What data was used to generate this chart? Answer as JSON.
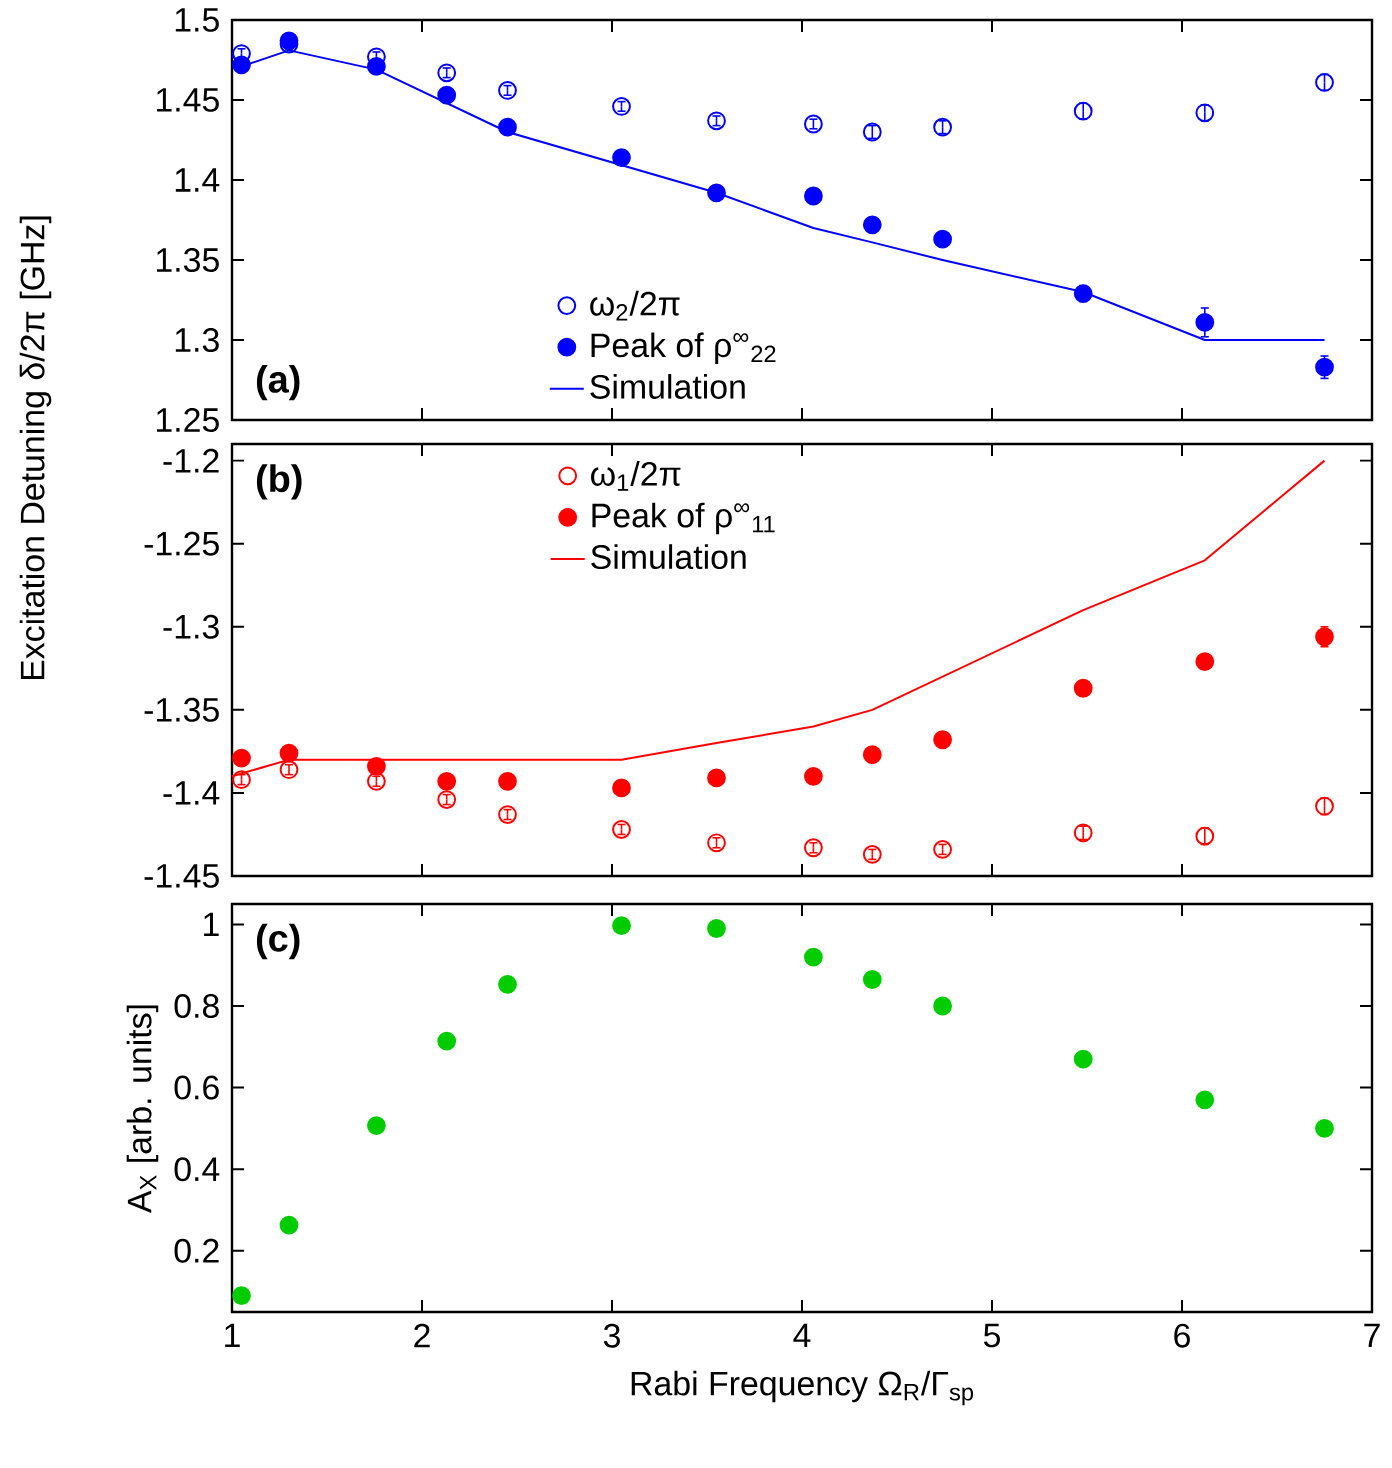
{
  "chart_data": [
    {
      "type": "scatter",
      "ylabel": "Excitation Detuning δ/2π [GHz]",
      "annotations": [
        "(a)"
      ],
      "xlim": [
        1,
        7
      ],
      "xticks": [
        1,
        2,
        3,
        4,
        5,
        6,
        7
      ],
      "ylim": [
        1.25,
        1.5
      ],
      "yticks": [
        1.25,
        1.3,
        1.35,
        1.4,
        1.45,
        1.5
      ],
      "tick_labels": "y",
      "legend": "bottom left",
      "x": [
        1.05,
        1.3,
        1.76,
        2.13,
        2.45,
        3.05,
        3.55,
        4.06,
        4.37,
        4.74,
        5.48,
        6.12,
        6.75
      ],
      "series": [
        {
          "name": "ω$_{2}$/2π",
          "color": "#0000ff",
          "marker": "open circle",
          "values": [
            1.479,
            1.485,
            1.477,
            1.467,
            1.456,
            1.446,
            1.437,
            1.435,
            1.43,
            1.433,
            1.443,
            1.442,
            1.461
          ],
          "errors": [
            0.003,
            0.003,
            0.003,
            0.003,
            0.003,
            0.003,
            0.003,
            0.003,
            0.004,
            0.004,
            0.005,
            0.005,
            0.005
          ]
        },
        {
          "name": "Peak of ρ$^{∞}$$_{22}$",
          "color": "#0000ff",
          "marker": "circle",
          "values": [
            1.472,
            1.487,
            1.471,
            1.453,
            1.433,
            1.414,
            1.392,
            1.39,
            1.372,
            1.363,
            1.329,
            1.311,
            1.283
          ],
          "errors": [
            null,
            null,
            null,
            null,
            null,
            null,
            null,
            null,
            null,
            null,
            0.005,
            0.009,
            0.007
          ]
        },
        {
          "name": "Simulation",
          "type": "line",
          "color": "#0000ff",
          "x": [
            1.0,
            1.05,
            1.3,
            1.76,
            2.45,
            3.55,
            4.06,
            4.37,
            4.74,
            5.48,
            6.12,
            6.75
          ],
          "values": [
            1.478,
            1.471,
            1.481,
            1.469,
            1.43,
            1.392,
            1.37,
            1.361,
            1.35,
            1.33,
            1.3,
            1.3
          ]
        }
      ]
    },
    {
      "type": "scatter",
      "annotations": [
        "(b)"
      ],
      "xlim": [
        1,
        7
      ],
      "xticks": [
        1,
        2,
        3,
        4,
        5,
        6,
        7
      ],
      "ylim": [
        -1.45,
        -1.19
      ],
      "yticks": [
        -1.45,
        -1.4,
        -1.35,
        -1.3,
        -1.25,
        -1.2
      ],
      "tick_labels": "y",
      "legend": "top left",
      "x": [
        1.05,
        1.3,
        1.76,
        2.13,
        2.45,
        3.05,
        3.55,
        4.06,
        4.37,
        4.74,
        5.48,
        6.12,
        6.75
      ],
      "series": [
        {
          "name": "ω$_{1}$/2π",
          "color": "#ff0000",
          "marker": "open circle",
          "values": [
            -1.392,
            -1.386,
            -1.393,
            -1.404,
            -1.413,
            -1.422,
            -1.43,
            -1.433,
            -1.437,
            -1.434,
            -1.424,
            -1.426,
            -1.408
          ],
          "errors": [
            0.003,
            0.003,
            0.003,
            0.003,
            0.003,
            0.003,
            0.003,
            0.003,
            0.003,
            0.003,
            0.004,
            0.005,
            0.005
          ]
        },
        {
          "name": "Peak of ρ$^{∞}$$_{11}$",
          "color": "#ff0000",
          "marker": "circle",
          "values": [
            -1.379,
            -1.376,
            -1.384,
            -1.393,
            -1.393,
            -1.397,
            -1.391,
            -1.39,
            -1.377,
            -1.368,
            -1.337,
            -1.321,
            -1.306
          ],
          "errors": [
            null,
            null,
            null,
            null,
            null,
            null,
            null,
            null,
            null,
            null,
            null,
            0.004,
            0.006
          ]
        },
        {
          "name": "Simulation",
          "type": "line",
          "color": "#ff0000",
          "x": [
            1.0,
            1.3,
            3.05,
            3.55,
            4.06,
            4.37,
            5.48,
            6.12,
            6.75
          ],
          "values": [
            -1.39,
            -1.38,
            -1.38,
            -1.37,
            -1.36,
            -1.35,
            -1.29,
            -1.26,
            -1.2
          ]
        }
      ]
    },
    {
      "type": "scatter",
      "xlabel": "Rabi Frequency Ω$_{R}$/Γ$_{sp}$",
      "ylabel": "A$_{X}$ [arb. units]",
      "annotations": [
        "(c)"
      ],
      "xlim": [
        1,
        7
      ],
      "xticks": [
        1,
        2,
        3,
        4,
        5,
        6,
        7
      ],
      "ylim": [
        0.05,
        1.05
      ],
      "yticks": [
        0.2,
        0.4,
        0.6,
        0.8,
        1
      ],
      "x": [
        1.05,
        1.3,
        1.76,
        2.13,
        2.45,
        3.05,
        3.55,
        4.06,
        4.37,
        4.74,
        5.48,
        6.12,
        6.75
      ],
      "series": [
        {
          "color": "#00cc00",
          "marker": "circle",
          "values": [
            0.09,
            0.263,
            0.507,
            0.714,
            0.853,
            0.997,
            0.99,
            0.92,
            0.865,
            0.8,
            0.67,
            0.57,
            0.5
          ]
        }
      ]
    }
  ]
}
